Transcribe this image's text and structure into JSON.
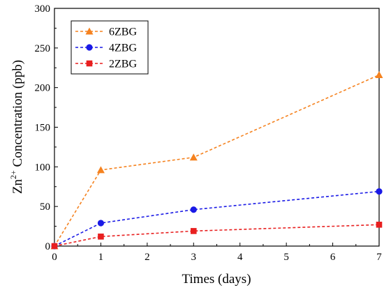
{
  "chart_data": {
    "type": "line",
    "title": "",
    "xlabel": "Times (days)",
    "ylabel_main": "Zn",
    "ylabel_superscript": "2+",
    "ylabel_rest": " Concentration (ppb)",
    "xlim": [
      0,
      7
    ],
    "ylim": [
      0,
      300
    ],
    "xticks": [
      0,
      1,
      2,
      3,
      4,
      5,
      6,
      7
    ],
    "yticks": [
      0,
      50,
      100,
      150,
      200,
      250,
      300
    ],
    "grid": false,
    "legend_position": "top-left",
    "series": [
      {
        "name": "6ZBG",
        "x": [
          0,
          1,
          3,
          7
        ],
        "y": [
          0,
          96,
          112,
          216
        ],
        "color": "#F5821F",
        "marker": "triangle",
        "line_style": "dashed"
      },
      {
        "name": "4ZBG",
        "x": [
          0,
          1,
          3,
          7
        ],
        "y": [
          0,
          29,
          46,
          69
        ],
        "color": "#1A1AE6",
        "marker": "circle",
        "line_style": "dashed"
      },
      {
        "name": "2ZBG",
        "x": [
          0,
          1,
          3,
          7
        ],
        "y": [
          0,
          12,
          19,
          27
        ],
        "color": "#E81F1F",
        "marker": "square",
        "line_style": "dashed"
      }
    ]
  }
}
